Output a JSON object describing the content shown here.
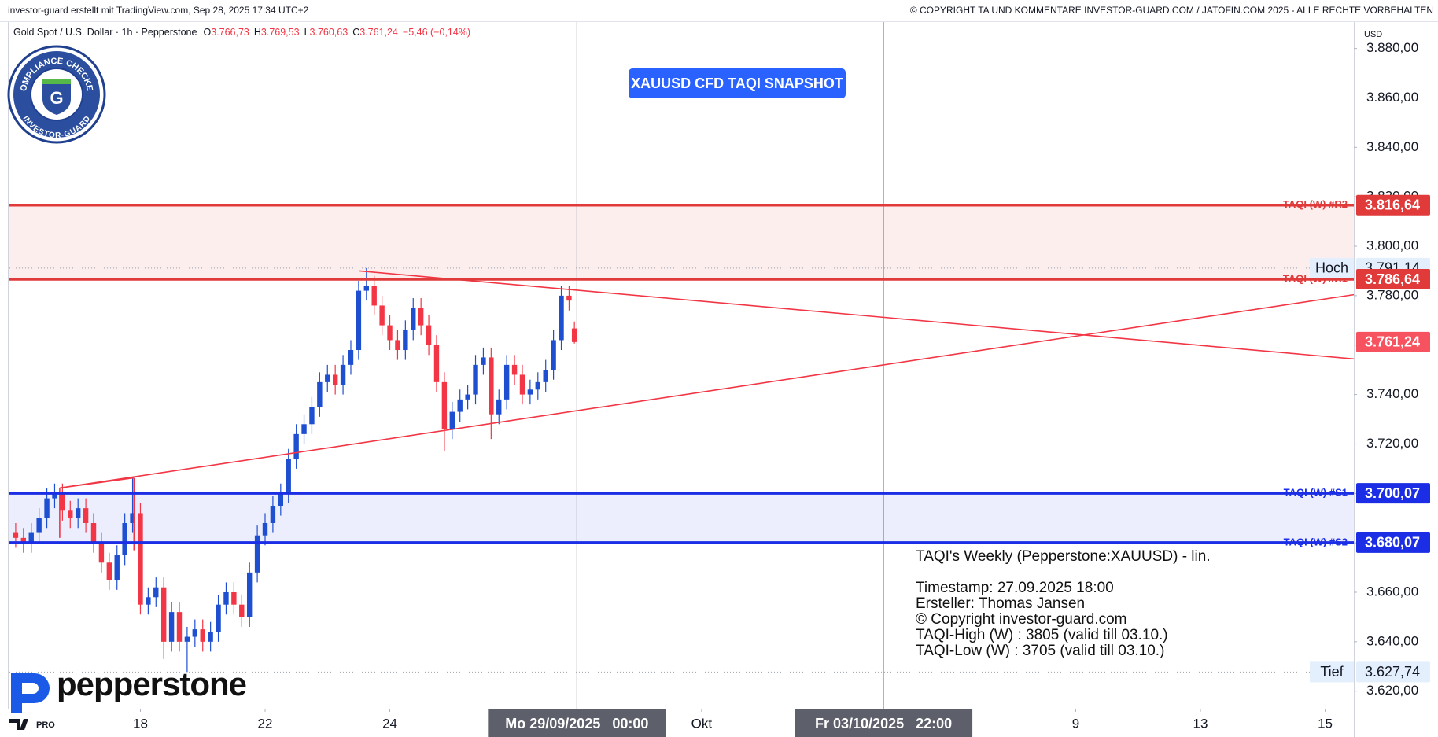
{
  "chart_data": {
    "type": "candlestick",
    "header_left": "investor-guard erstellt mit TradingView.com, Sep 28, 2025 17:34 UTC+2",
    "header_right": "© COPYRIGHT TA UND KOMMENTARE INVESTOR-GUARD.COM / JATOFIN.COM 2025 - ALLE RECHTE VORBEHALTEN",
    "symbol": "Gold Spot / U.S. Dollar · 1h · Pepperstone",
    "ohlc_legend": [
      {
        "prefix": "O",
        "value": 3766.73,
        "label": "3.766,73"
      },
      {
        "prefix": "H",
        "value": 3769.53,
        "label": "3.769,53"
      },
      {
        "prefix": "L",
        "value": 3760.63,
        "label": "3.760,63"
      },
      {
        "prefix": "C",
        "value": 3761.24,
        "label": "3.761,24"
      }
    ],
    "change": "−5,46 (−0,14%)",
    "title": "XAUUSD CFD TAQI SNAPSHOT",
    "currency": "USD",
    "badge": {
      "top": "COMPLIANCE CHECKED",
      "bottom": "INVESTOR-GUARD",
      "letter": "G"
    },
    "brand": "pepperstone",
    "tv_badge": "PRO",
    "up_color": "#1f4fd1",
    "down_color": "#f23645",
    "x": [
      -2,
      -1.875,
      -1.75,
      -1.625,
      -1.5,
      -1.375,
      -1.25,
      -1.125,
      -1,
      -0.875,
      -0.75,
      -0.625,
      -0.5,
      -0.375,
      -0.25,
      -0.125,
      0,
      0.125,
      0.25,
      0.375,
      0.5,
      0.625,
      0.75,
      0.875,
      1,
      1.125,
      1.25,
      1.375,
      1.5,
      1.625,
      1.75,
      1.875,
      2,
      2.125,
      2.25,
      2.375,
      2.5,
      2.625,
      2.75,
      2.875,
      3,
      3.125,
      3.25,
      3.375,
      3.5,
      3.625,
      3.75,
      3.875,
      4,
      4.125,
      4.25,
      4.375,
      4.5,
      4.625,
      4.75,
      4.875,
      5,
      5.125,
      5.25,
      5.375,
      5.5,
      5.625,
      5.75,
      5.875,
      6,
      6.125,
      6.25,
      6.375,
      6.5,
      6.625,
      6.75,
      6.875,
      6.96
    ],
    "open": [
      3684,
      3682,
      3680,
      3684,
      3690,
      3698,
      3700,
      3693,
      3690,
      3694,
      3688,
      3680,
      3672,
      3665,
      3675,
      3688,
      3692,
      3655,
      3658,
      3662,
      3640,
      3652,
      3640,
      3642,
      3645,
      3640,
      3644,
      3655,
      3660,
      3655,
      3650,
      3668,
      3683,
      3688,
      3695,
      3700,
      3714,
      3724,
      3728,
      3735,
      3745,
      3748,
      3744,
      3752,
      3758,
      3782,
      3784,
      3776,
      3768,
      3762,
      3758,
      3766,
      3775,
      3768,
      3760,
      3745,
      3726,
      3733,
      3738,
      3740,
      3752,
      3755,
      3732,
      3738,
      3752,
      3748,
      3740,
      3742,
      3745,
      3750,
      3762,
      3780,
      3766.73
    ],
    "high": [
      3688,
      3686,
      3688,
      3694,
      3702,
      3704,
      3704,
      3697,
      3698,
      3698,
      3692,
      3684,
      3676,
      3679,
      3692,
      3706,
      3696,
      3662,
      3666,
      3666,
      3656,
      3656,
      3646,
      3649,
      3649,
      3648,
      3659,
      3664,
      3664,
      3659,
      3672,
      3687,
      3692,
      3699,
      3704,
      3718,
      3728,
      3732,
      3739,
      3749,
      3752,
      3752,
      3756,
      3762,
      3786,
      3791.14,
      3788,
      3780,
      3772,
      3766,
      3770,
      3779,
      3779,
      3772,
      3764,
      3749,
      3737,
      3742,
      3744,
      3756,
      3759,
      3759,
      3742,
      3756,
      3756,
      3752,
      3746,
      3749,
      3754,
      3766,
      3784,
      3784,
      3769.53
    ],
    "low": [
      3678,
      3676,
      3676,
      3680,
      3686,
      3694,
      3689,
      3686,
      3686,
      3684,
      3676,
      3668,
      3661,
      3661,
      3671,
      3684,
      3651,
      3651,
      3654,
      3633,
      3636,
      3636,
      3627.74,
      3638,
      3636,
      3636,
      3640,
      3651,
      3651,
      3646,
      3646,
      3664,
      3679,
      3684,
      3691,
      3696,
      3710,
      3720,
      3724,
      3731,
      3741,
      3740,
      3740,
      3748,
      3754,
      3778,
      3772,
      3764,
      3758,
      3754,
      3754,
      3762,
      3764,
      3756,
      3741,
      3717,
      3722,
      3729,
      3734,
      3736,
      3748,
      3722,
      3728,
      3734,
      3744,
      3736,
      3736,
      3738,
      3741,
      3746,
      3758,
      3774,
      3760.63
    ],
    "close": [
      3682,
      3680,
      3684,
      3690,
      3698,
      3700,
      3693,
      3690,
      3694,
      3688,
      3680,
      3672,
      3665,
      3675,
      3688,
      3692,
      3655,
      3658,
      3662,
      3640,
      3652,
      3640,
      3642,
      3645,
      3640,
      3644,
      3655,
      3660,
      3655,
      3650,
      3668,
      3683,
      3688,
      3695,
      3700,
      3714,
      3724,
      3728,
      3735,
      3745,
      3748,
      3744,
      3752,
      3758,
      3782,
      3784,
      3776,
      3768,
      3762,
      3758,
      3766,
      3775,
      3768,
      3760,
      3745,
      3726,
      3733,
      3738,
      3740,
      3752,
      3755,
      3732,
      3738,
      3752,
      3748,
      3740,
      3742,
      3745,
      3750,
      3762,
      3780,
      3778,
      3761.24
    ],
    "xlim": [
      -2.1,
      19.46
    ],
    "ylim": [
      3612.9,
      3890.7
    ],
    "yticks": [
      {
        "value": 3620,
        "label": "3.620,00"
      },
      {
        "value": 3640,
        "label": "3.640,00"
      },
      {
        "value": 3660,
        "label": "3.660,00"
      },
      {
        "value": 3680,
        "label": "3.680,00"
      },
      {
        "value": 3700,
        "label": "3.700,00"
      },
      {
        "value": 3720,
        "label": "3.720,00"
      },
      {
        "value": 3740,
        "label": "3.740,00"
      },
      {
        "value": 3760,
        "label": "3.760,00"
      },
      {
        "value": 3780,
        "label": "3.780,00"
      },
      {
        "value": 3800,
        "label": "3.800,00"
      },
      {
        "value": 3820,
        "label": "3.820,00"
      },
      {
        "value": 3840,
        "label": "3.840,00"
      },
      {
        "value": 3860,
        "label": "3.860,00"
      },
      {
        "value": 3880,
        "label": "3.880,00"
      }
    ],
    "xticks": [
      {
        "value": 0,
        "label": "18"
      },
      {
        "value": 2,
        "label": "22"
      },
      {
        "value": 4,
        "label": "24"
      },
      {
        "value": 9,
        "label": "Okt"
      },
      {
        "value": 15,
        "label": "9"
      },
      {
        "value": 17,
        "label": "13"
      },
      {
        "value": 19,
        "label": "15"
      }
    ],
    "marked_times": [
      {
        "value": 7,
        "label": "Mo 29/09/2025   00:00"
      },
      {
        "value": 11.917,
        "label": "Fr 03/10/2025   22:00"
      }
    ],
    "grid": false,
    "levels": [
      {
        "name": "TAQI (W) #R2",
        "value": 3816.64,
        "label": "3.816,64",
        "color": "#e03a3a"
      },
      {
        "name": "TAQI (W) #R1",
        "value": 3786.64,
        "label": "3.786,64",
        "color": "#e03a3a"
      },
      {
        "name": "TAQI (W) #S1",
        "value": 3700.07,
        "label": "3.700,07",
        "color": "#1b2ee6"
      },
      {
        "name": "TAQI (W) #S2",
        "value": 3680.07,
        "label": "3.680,07",
        "color": "#1b2ee6"
      }
    ],
    "zones": [
      {
        "levels": [
          0,
          1
        ],
        "color": "#fdeeee"
      },
      {
        "levels": [
          2,
          3
        ],
        "color": "#eceefd"
      }
    ],
    "extremes": [
      {
        "name": "Hoch",
        "value": 3791.14,
        "label": "3.791,14"
      },
      {
        "name": "Tief",
        "value": 3627.74,
        "label": "3.627,74"
      }
    ],
    "last": {
      "value": 3761.24,
      "label": "3.761,24",
      "color": "#f7525f"
    },
    "trendline_color": "#f23645",
    "trendlines": [
      {
        "x": [
          3.515,
          19.46
        ],
        "y": [
          3790,
          3754.4
        ]
      },
      {
        "x": [
          -1.294,
          19.46
        ],
        "y": [
          3702.2,
          3780.4
        ]
      },
      {
        "x": [
          -1.294,
          -0.103
        ],
        "y": [
          3702.2,
          3706.3
        ]
      },
      {
        "x": [
          -1.294,
          -1.294
        ],
        "y": [
          3702.2,
          3682
        ]
      },
      {
        "x": [
          -0.103,
          -0.103
        ],
        "y": [
          3706.3,
          3677
        ]
      }
    ],
    "note": [
      "TAQI's Weekly (Pepperstone:XAUUSD) - lin.",
      "Timestamp: 27.09.2025 18:00",
      "Ersteller: Thomas Jansen",
      "© Copyright investor-guard.com",
      "TAQI-High (W) : 3805 (valid till 03.10.)",
      "TAQI-Low (W) : 3705 (valid till 03.10.)"
    ]
  }
}
